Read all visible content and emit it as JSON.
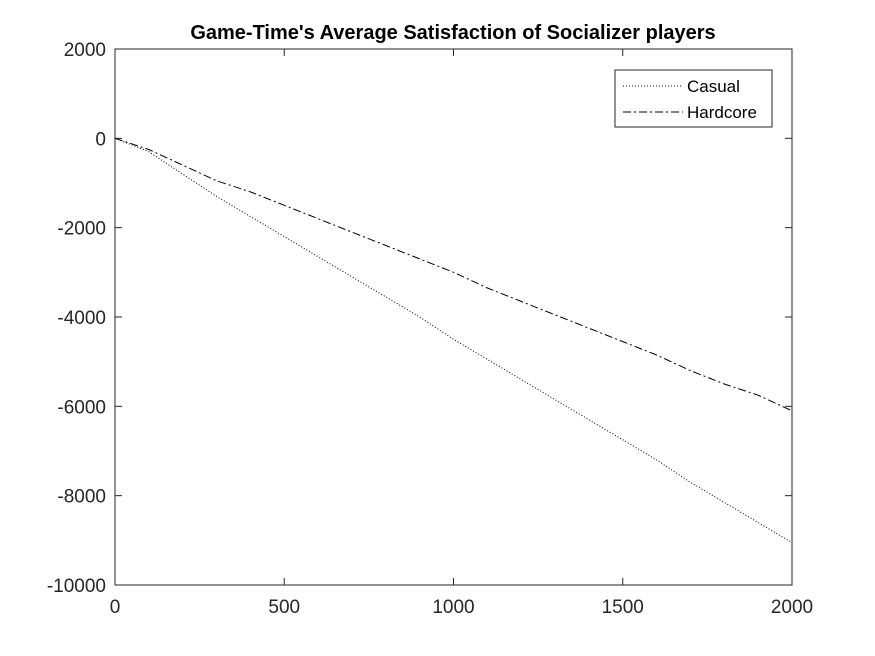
{
  "chart_data": {
    "type": "line",
    "title": "Game-Time's Average Satisfaction of Socializer players",
    "xlabel": "",
    "ylabel": "",
    "xlim": [
      0,
      2000
    ],
    "ylim": [
      -10000,
      2000
    ],
    "xticks": [
      0,
      500,
      1000,
      1500,
      2000
    ],
    "yticks": [
      -10000,
      -8000,
      -6000,
      -4000,
      -2000,
      0,
      2000
    ],
    "grid": false,
    "legend_position": "top-right",
    "series": [
      {
        "name": "Casual",
        "line_style": "dotted",
        "color": "#000000",
        "x": [
          0,
          100,
          200,
          300,
          400,
          500,
          600,
          700,
          800,
          900,
          1000,
          1100,
          1200,
          1300,
          1400,
          1500,
          1600,
          1700,
          1800,
          1900,
          2000
        ],
        "y": [
          0,
          -300,
          -800,
          -1300,
          -1750,
          -2200,
          -2650,
          -3100,
          -3550,
          -4000,
          -4500,
          -4950,
          -5400,
          -5850,
          -6300,
          -6750,
          -7200,
          -7700,
          -8150,
          -8600,
          -9050
        ]
      },
      {
        "name": "Hardcore",
        "line_style": "dashdot",
        "color": "#000000",
        "x": [
          0,
          100,
          200,
          300,
          400,
          500,
          600,
          700,
          800,
          900,
          1000,
          1100,
          1200,
          1300,
          1400,
          1500,
          1600,
          1700,
          1800,
          1900,
          2000
        ],
        "y": [
          0,
          -250,
          -600,
          -950,
          -1200,
          -1500,
          -1800,
          -2100,
          -2400,
          -2700,
          -3000,
          -3350,
          -3650,
          -3950,
          -4250,
          -4550,
          -4850,
          -5200,
          -5500,
          -5750,
          -6100
        ]
      }
    ]
  }
}
